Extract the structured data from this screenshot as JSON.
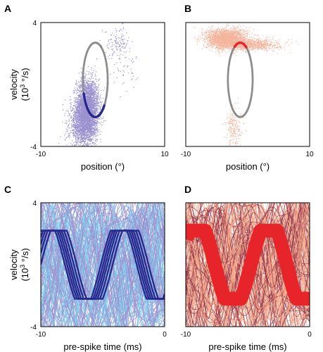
{
  "chart_data": [
    {
      "panel": "A",
      "type": "scatter",
      "xlabel": "position (°)",
      "ylabel": "velocity",
      "ylabel_unit_base": "(10",
      "ylabel_unit_exp": "3",
      "ylabel_unit_tail": " °/s)",
      "xlim": [
        -10,
        10
      ],
      "ylim": [
        -4,
        4
      ],
      "xticks": [
        "-10",
        "10"
      ],
      "yticks": [
        "-4",
        "4"
      ],
      "colors": {
        "points": "#9b92cf",
        "ring": "#8c8c8c",
        "highlight": "#27278f"
      },
      "ring": {
        "center": [
          -1.2,
          0.3
        ],
        "radius_x": 2.0,
        "radius_y": 2.4
      },
      "highlight_arc_deg": [
        200,
        320
      ],
      "clusters": [
        {
          "center": [
            -2.5,
            -1.4
          ],
          "spread": [
            0.9,
            0.9
          ],
          "n": 2600
        },
        {
          "center": [
            -3.2,
            -2.6
          ],
          "spread": [
            1.1,
            0.8
          ],
          "n": 1600
        },
        {
          "center": [
            2.4,
            2.7
          ],
          "spread": [
            1.0,
            0.5
          ],
          "n": 140
        },
        {
          "center": [
            4.0,
            0.9
          ],
          "spread": [
            1.4,
            0.6
          ],
          "n": 40
        }
      ]
    },
    {
      "panel": "B",
      "type": "scatter",
      "xlabel": "position (°)",
      "ylabel": "",
      "xlim": [
        -10,
        10
      ],
      "ylim": [
        -4,
        4
      ],
      "xticks": [
        "-10",
        "10"
      ],
      "yticks": [],
      "colors": {
        "points": "#f4b59e",
        "ring": "#8c8c8c",
        "highlight": "#e8242b"
      },
      "ring": {
        "center": [
          -1.2,
          0.3
        ],
        "radius_x": 2.0,
        "radius_y": 2.4
      },
      "highlight_arc_deg": [
        60,
        120
      ],
      "clusters": [
        {
          "center": [
            -3.5,
            3.0
          ],
          "spread": [
            1.6,
            0.32
          ],
          "n": 2000
        },
        {
          "center": [
            0.0,
            2.6
          ],
          "spread": [
            2.5,
            0.18
          ],
          "n": 900
        },
        {
          "center": [
            -2.2,
            -2.8
          ],
          "spread": [
            0.7,
            0.7
          ],
          "n": 200
        }
      ]
    },
    {
      "panel": "C",
      "type": "line",
      "xlabel": "pre-spike time (ms)",
      "ylabel": "velocity",
      "ylabel_unit_base": "(10",
      "ylabel_unit_exp": "3",
      "ylabel_unit_tail": " °/s)",
      "xlim": [
        -10,
        0
      ],
      "ylim": [
        -4,
        4
      ],
      "xticks": [
        "-10",
        "0"
      ],
      "yticks": [
        "-4",
        "4"
      ],
      "colors": {
        "bg_a": "#9b92cf",
        "bg_b": "#7ecff0",
        "fg": "#262a8e"
      },
      "sine": {
        "period_ms": 5.8,
        "amplitude": 2.9,
        "clip": 2.2,
        "phase": 0.6
      },
      "bundle_offsets": [
        -0.55,
        -0.32,
        -0.12,
        0.05,
        0.22,
        0.4
      ]
    },
    {
      "panel": "D",
      "type": "line",
      "xlabel": "pre-spike time (ms)",
      "ylabel": "",
      "xlim": [
        -10,
        0
      ],
      "ylim": [
        -4,
        4
      ],
      "xticks": [
        "-10",
        "0"
      ],
      "yticks": [],
      "colors": {
        "bg_a": "#f4a98c",
        "bg_b": "#9a3a4a",
        "fg": "#e8242b"
      },
      "sine": {
        "period_ms": 5.8,
        "amplitude": 2.9,
        "clip": 2.2,
        "phase": 0.6
      },
      "band_width": 0.9
    }
  ]
}
